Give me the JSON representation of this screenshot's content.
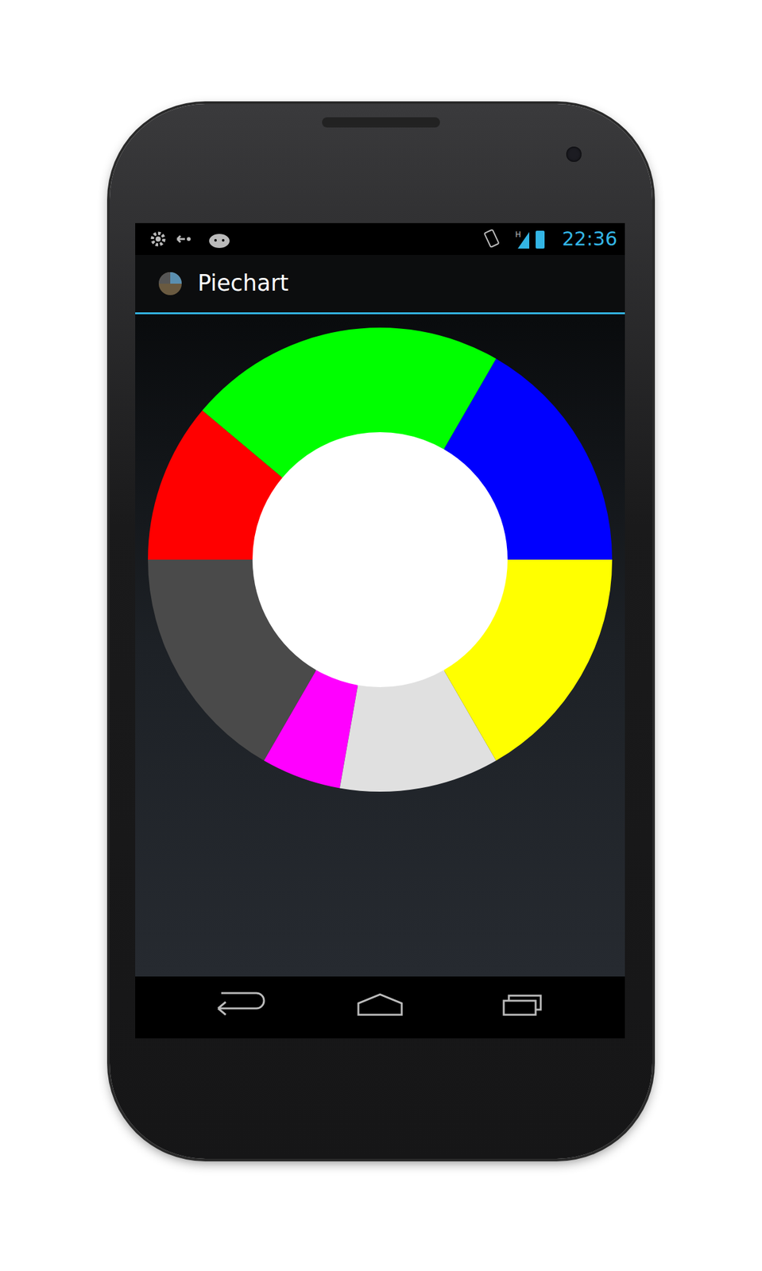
{
  "status_bar": {
    "time": "22:36"
  },
  "app_bar": {
    "title": "Piechart"
  },
  "chart_data": {
    "type": "pie",
    "values": [
      60,
      80,
      40,
      60,
      20,
      40,
      60
    ],
    "colors": [
      "#0000ff",
      "#00ff00",
      "#ff0000",
      "#4a4a4a",
      "#ff00ff",
      "#e0e0e0",
      "#ffff00"
    ]
  }
}
